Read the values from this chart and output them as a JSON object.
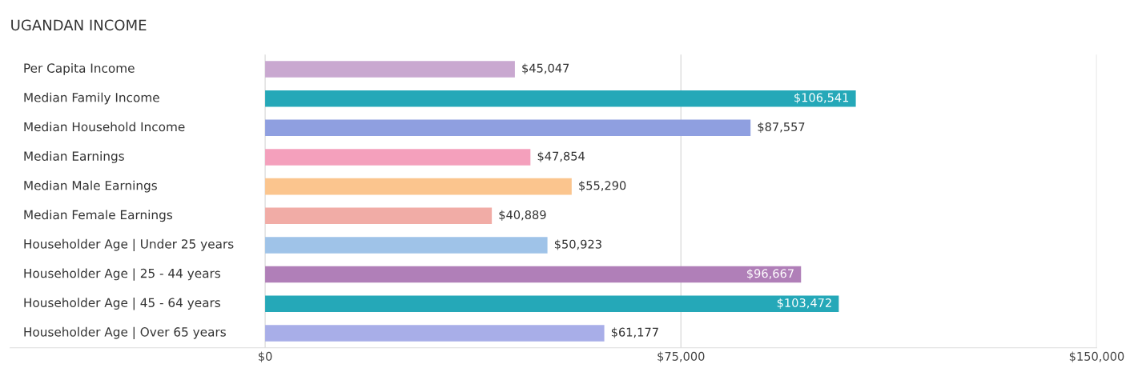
{
  "chart_data": {
    "type": "bar",
    "orientation": "horizontal",
    "title": "UGANDAN INCOME",
    "categories": [
      "Per Capita Income",
      "Median Family Income",
      "Median Household Income",
      "Median Earnings",
      "Median Male Earnings",
      "Median Female Earnings",
      "Householder Age | Under 25 years",
      "Householder Age | 25 - 44 years",
      "Householder Age | 45 - 64 years",
      "Householder Age | Over 65 years"
    ],
    "values": [
      45047,
      106541,
      87557,
      47854,
      55290,
      40889,
      50923,
      96667,
      103472,
      61177
    ],
    "value_labels": [
      "$45,047",
      "$106,541",
      "$87,557",
      "$47,854",
      "$55,290",
      "$40,889",
      "$50,923",
      "$96,667",
      "$103,472",
      "$61,177"
    ],
    "colors": [
      "#c9a8d0",
      "#25a8b8",
      "#8f9fe0",
      "#f4a0bc",
      "#fbc58e",
      "#f1aca6",
      "#9fc3e8",
      "#b07fb8",
      "#25a8b8",
      "#a8aee8"
    ],
    "xlim": [
      -46000,
      150000
    ],
    "xticks": [
      {
        "value": 0,
        "label": "$0"
      },
      {
        "value": 75000,
        "label": "$75,000"
      },
      {
        "value": 150000,
        "label": "$150,000"
      }
    ],
    "grid": "x"
  }
}
